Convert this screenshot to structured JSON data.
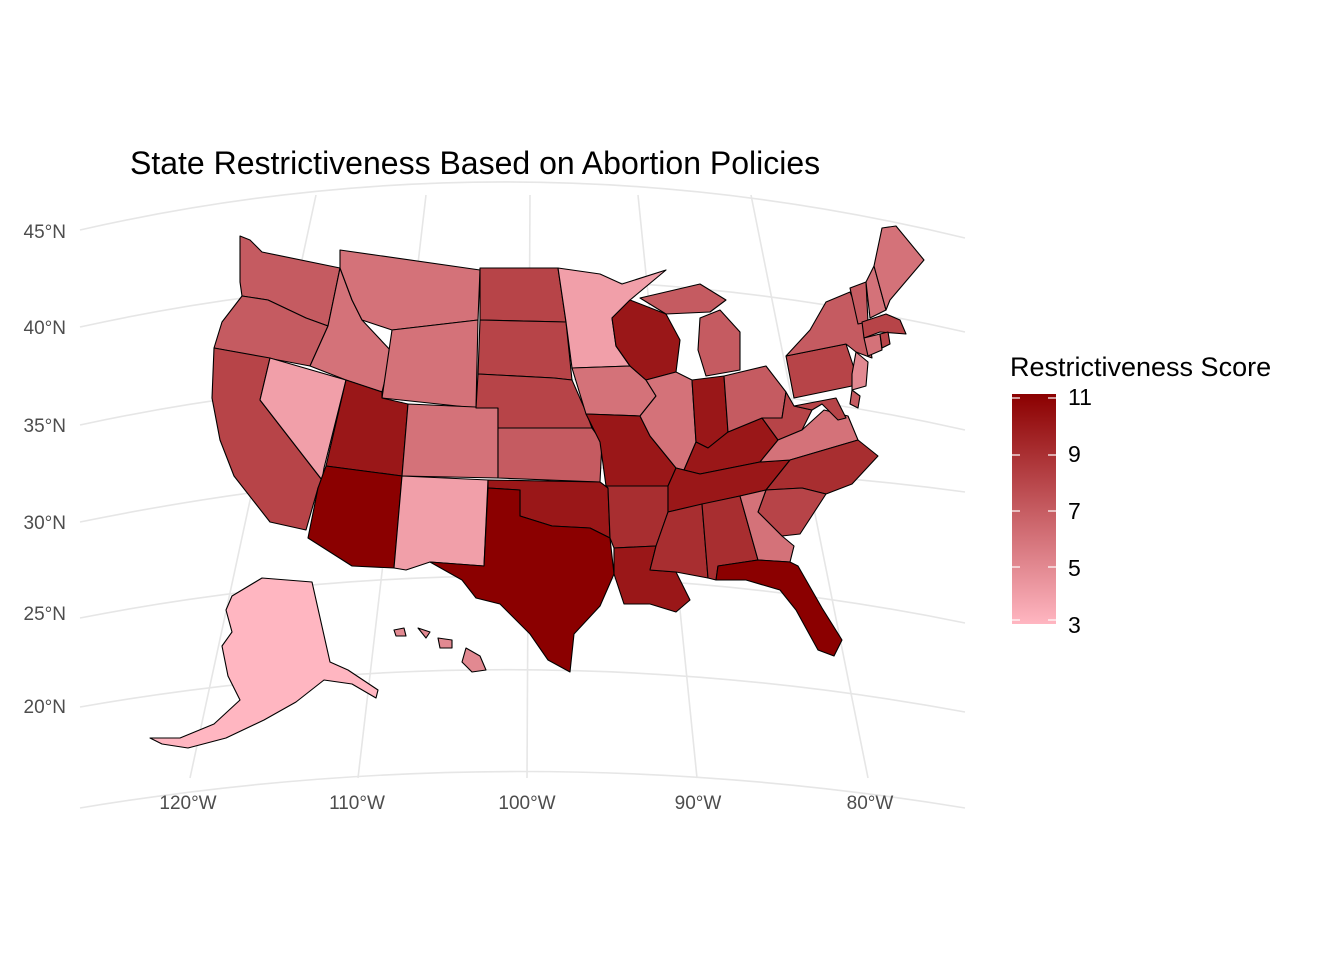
{
  "title": "State Restrictiveness Based on Abortion Policies",
  "axes": {
    "lat_labels": [
      "45°N",
      "40°N",
      "35°N",
      "30°N",
      "25°N",
      "20°N"
    ],
    "lon_labels": [
      "120°W",
      "110°W",
      "100°W",
      "90°W",
      "80°W"
    ]
  },
  "legend": {
    "title": "Restrictiveness Score",
    "breaks": [
      "11",
      "9",
      "7",
      "5",
      "3"
    ],
    "low_color": "#FFB6C1",
    "high_color": "#8B0000",
    "min": 3,
    "max": 11
  },
  "states": [
    {
      "id": "WA",
      "score": 7
    },
    {
      "id": "OR",
      "score": 7
    },
    {
      "id": "CA",
      "score": 8
    },
    {
      "id": "NV",
      "score": 4
    },
    {
      "id": "ID",
      "score": 6
    },
    {
      "id": "MT",
      "score": 6
    },
    {
      "id": "WY",
      "score": 6
    },
    {
      "id": "UT",
      "score": 10
    },
    {
      "id": "AZ",
      "score": 11
    },
    {
      "id": "CO",
      "score": 6
    },
    {
      "id": "NM",
      "score": 4
    },
    {
      "id": "ND",
      "score": 8
    },
    {
      "id": "SD",
      "score": 8
    },
    {
      "id": "NE",
      "score": 8
    },
    {
      "id": "KS",
      "score": 7
    },
    {
      "id": "OK",
      "score": 10
    },
    {
      "id": "TX",
      "score": 11
    },
    {
      "id": "MN",
      "score": 4
    },
    {
      "id": "IA",
      "score": 6
    },
    {
      "id": "MO",
      "score": 10
    },
    {
      "id": "AR",
      "score": 9
    },
    {
      "id": "LA",
      "score": 10
    },
    {
      "id": "WI",
      "score": 10
    },
    {
      "id": "IL",
      "score": 6
    },
    {
      "id": "MI",
      "score": 7
    },
    {
      "id": "IN",
      "score": 10
    },
    {
      "id": "KY",
      "score": 10
    },
    {
      "id": "TN",
      "score": 10
    },
    {
      "id": "MS",
      "score": 9
    },
    {
      "id": "AL",
      "score": 9
    },
    {
      "id": "OH",
      "score": 7
    },
    {
      "id": "WV",
      "score": 8
    },
    {
      "id": "VA",
      "score": 6
    },
    {
      "id": "NC",
      "score": 9
    },
    {
      "id": "SC",
      "score": 8
    },
    {
      "id": "GA",
      "score": 6
    },
    {
      "id": "FL",
      "score": 11
    },
    {
      "id": "PA",
      "score": 8
    },
    {
      "id": "NY",
      "score": 7
    },
    {
      "id": "NJ",
      "score": 5
    },
    {
      "id": "DE",
      "score": 7
    },
    {
      "id": "MD",
      "score": 8
    },
    {
      "id": "VT",
      "score": 7
    },
    {
      "id": "NH",
      "score": 6
    },
    {
      "id": "ME",
      "score": 6
    },
    {
      "id": "MA",
      "score": 8
    },
    {
      "id": "CT",
      "score": 6
    },
    {
      "id": "RI",
      "score": 8
    },
    {
      "id": "AK",
      "score": 3
    },
    {
      "id": "HI",
      "score": 5
    }
  ]
}
